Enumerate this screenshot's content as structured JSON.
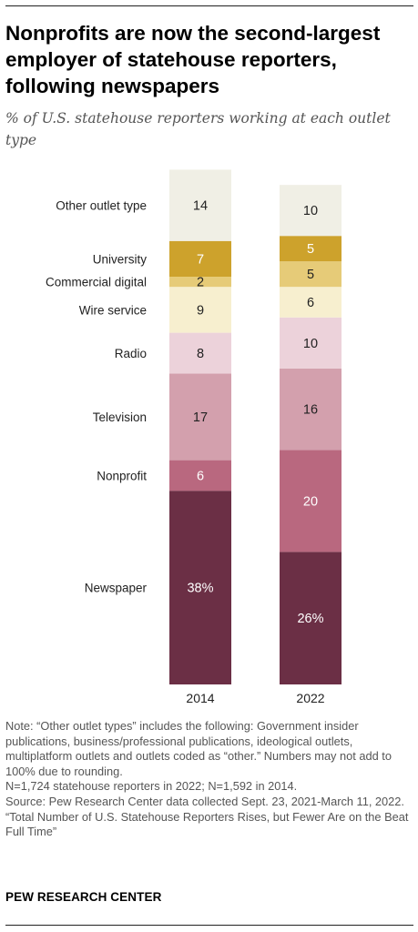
{
  "title": "Nonprofits are now the second-largest\nemployer of statehouse reporters,\nfollowing newspapers",
  "subtitle": "% of U.S. statehouse reporters working at each outlet\ntype",
  "chart_data": {
    "type": "bar",
    "stacked": true,
    "categories": [
      "2014",
      "2022"
    ],
    "series": [
      {
        "name": "Newspaper",
        "values": [
          38,
          26
        ],
        "labels": [
          "38%",
          "26%"
        ],
        "color": "#6b2f45",
        "label_color": "#ffffff"
      },
      {
        "name": "Nonprofit",
        "values": [
          6,
          20
        ],
        "labels": [
          "6",
          "20"
        ],
        "color": "#b9687f",
        "label_color": "#ffffff"
      },
      {
        "name": "Television",
        "values": [
          17,
          16
        ],
        "labels": [
          "17",
          "16"
        ],
        "color": "#d3a0ad",
        "label_color": "#222222"
      },
      {
        "name": "Radio",
        "values": [
          8,
          10
        ],
        "labels": [
          "8",
          "10"
        ],
        "color": "#ecd2da",
        "label_color": "#222222"
      },
      {
        "name": "Wire service",
        "values": [
          9,
          6
        ],
        "labels": [
          "9",
          "6"
        ],
        "color": "#f7efcf",
        "label_color": "#222222"
      },
      {
        "name": "Commercial digital",
        "values": [
          2,
          5
        ],
        "labels": [
          "2",
          "5"
        ],
        "color": "#e6cb78",
        "label_color": "#222222"
      },
      {
        "name": "University",
        "values": [
          7,
          5
        ],
        "labels": [
          "7",
          "5"
        ],
        "color": "#cda22c",
        "label_color": "#ffffff"
      },
      {
        "name": "Other outlet type",
        "values": [
          14,
          10
        ],
        "labels": [
          "14",
          "10"
        ],
        "color": "#f0efe5",
        "label_color": "#222222"
      }
    ]
  },
  "notes": [
    "Note: “Other outlet types” includes the following: Government insider publications, business/professional publications, ideological outlets, multiplatform outlets and outlets coded as “other.” Numbers may not add to 100% due to rounding.",
    "N=1,724 statehouse reporters in 2022; N=1,592 in 2014.",
    "Source: Pew Research Center data collected Sept. 23, 2021-March 11, 2022.",
    "“Total Number of U.S. Statehouse Reporters Rises, but Fewer Are on the Beat Full Time”"
  ],
  "brand": "PEW RESEARCH CENTER"
}
